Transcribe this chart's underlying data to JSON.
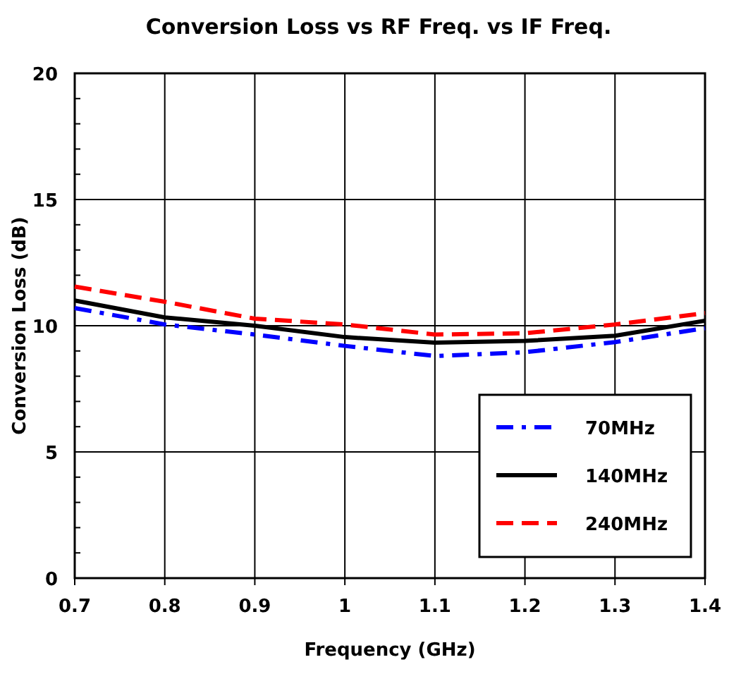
{
  "chart_data": {
    "type": "line",
    "title": "Conversion Loss vs RF Freq. vs IF Freq.",
    "xlabel": "Frequency (GHz)",
    "ylabel": "Conversion Loss (dB)",
    "x": [
      0.7,
      0.8,
      0.9,
      1.0,
      1.1,
      1.2,
      1.3,
      1.4
    ],
    "series": [
      {
        "name": "70MHz",
        "color": "#0000ff",
        "line_style": "dashdot",
        "values": [
          10.7,
          10.05,
          9.65,
          9.2,
          8.8,
          8.95,
          9.35,
          9.9
        ]
      },
      {
        "name": "140MHz",
        "color": "#000000",
        "line_style": "solid",
        "values": [
          11.0,
          10.33,
          10.0,
          9.55,
          9.33,
          9.4,
          9.6,
          10.2
        ]
      },
      {
        "name": "240MHz",
        "color": "#ff0000",
        "line_style": "dashed",
        "values": [
          11.55,
          10.95,
          10.28,
          10.05,
          9.65,
          9.7,
          10.05,
          10.5
        ]
      }
    ],
    "xlim": [
      0.7,
      1.4
    ],
    "xticks": [
      0.7,
      0.8,
      0.9,
      {
        "value": 1,
        "label": "1"
      },
      1.1,
      1.2,
      1.3,
      1.4
    ],
    "ylim": [
      0,
      20
    ],
    "yticks": [
      0,
      5,
      10,
      15,
      20
    ],
    "grid": true,
    "legend": "bottom right",
    "marker": "none"
  }
}
